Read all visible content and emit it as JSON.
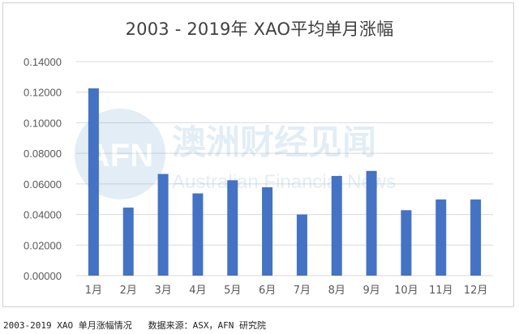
{
  "chart_data": {
    "type": "bar",
    "title": "2003 - 2019年 XAO平均单月涨幅",
    "categories": [
      "1月",
      "2月",
      "3月",
      "4月",
      "5月",
      "6月",
      "7月",
      "8月",
      "9月",
      "10月",
      "11月",
      "12月"
    ],
    "values": [
      0.1225,
      0.0445,
      0.0665,
      0.0538,
      0.0624,
      0.0578,
      0.04,
      0.0652,
      0.0685,
      0.0428,
      0.0498,
      0.0498
    ],
    "ylim": [
      0,
      0.14
    ],
    "yticks": [
      0.14,
      0.12,
      0.1,
      0.08,
      0.06,
      0.04,
      0.02,
      0.0
    ],
    "ytick_labels": [
      "0.14000",
      "0.12000",
      "0.10000",
      "0.08000",
      "0.06000",
      "0.04000",
      "0.02000",
      "0.00000"
    ],
    "grid": true,
    "legend": "none",
    "bar_color": "#4472c4"
  },
  "watermark": {
    "logo": "AFN",
    "text_cn": "澳洲财经见闻",
    "text_en": "Australian Financial News"
  },
  "caption": "2003-2019 XAO 单月涨幅情况   数据来源：ASX，AFN 研究院"
}
